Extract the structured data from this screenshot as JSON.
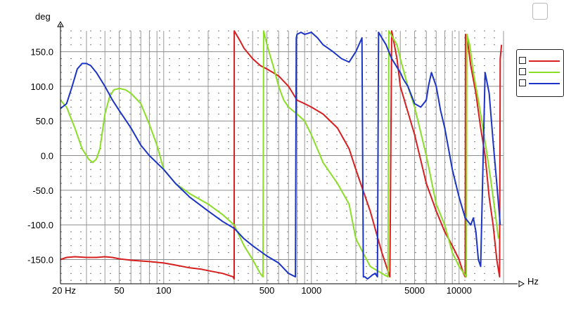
{
  "chart_data": {
    "type": "line",
    "xscale": "log",
    "xlabel": "Hz",
    "ylabel": "deg",
    "xlim": [
      20,
      20000
    ],
    "ylim": [
      -185,
      180
    ],
    "x_tick_labels": [
      "20 Hz",
      "50",
      "100",
      "500",
      "1000",
      "5000",
      "10000"
    ],
    "x_tick_values": [
      20,
      50,
      100,
      500,
      1000,
      5000,
      10000
    ],
    "y_tick_labels": [
      "150.0",
      "100.0",
      "50.0",
      "0.0",
      "-50.0",
      "-100.0",
      "-150.0"
    ],
    "y_tick_values": [
      150,
      100,
      50,
      0,
      -50,
      -100,
      -150
    ],
    "grid": true,
    "legend_position": "right",
    "series": [
      {
        "color": "#d81e1e",
        "points": [
          [
            20,
            -150
          ],
          [
            22,
            -147
          ],
          [
            25,
            -146
          ],
          [
            30,
            -147
          ],
          [
            35,
            -147
          ],
          [
            40,
            -146
          ],
          [
            45,
            -147
          ],
          [
            50,
            -149
          ],
          [
            55,
            -150
          ],
          [
            60,
            -151
          ],
          [
            70,
            -152
          ],
          [
            80,
            -153
          ],
          [
            100,
            -155
          ],
          [
            120,
            -158
          ],
          [
            150,
            -162
          ],
          [
            180,
            -164
          ],
          [
            200,
            -166
          ],
          [
            250,
            -170
          ],
          [
            295,
            -175
          ],
          [
            300,
            -178
          ],
          [
            300.5,
            180
          ],
          [
            330,
            165
          ],
          [
            350,
            155
          ],
          [
            400,
            140
          ],
          [
            450,
            130
          ],
          [
            500,
            125
          ],
          [
            600,
            115
          ],
          [
            700,
            100
          ],
          [
            800,
            80
          ],
          [
            900,
            75
          ],
          [
            1000,
            70
          ],
          [
            1200,
            60
          ],
          [
            1500,
            40
          ],
          [
            1800,
            10
          ],
          [
            2000,
            -20
          ],
          [
            2500,
            -80
          ],
          [
            3000,
            -140
          ],
          [
            3400,
            -175
          ],
          [
            3500,
            180
          ],
          [
            3800,
            140
          ],
          [
            4000,
            100
          ],
          [
            5000,
            30
          ],
          [
            6000,
            -40
          ],
          [
            7000,
            -80
          ],
          [
            8000,
            -110
          ],
          [
            9000,
            -130
          ],
          [
            10000,
            -150
          ],
          [
            10700,
            -170
          ],
          [
            11000,
            -175
          ],
          [
            11050,
            175
          ],
          [
            11500,
            160
          ],
          [
            12000,
            130
          ],
          [
            13000,
            90
          ],
          [
            14000,
            40
          ],
          [
            15000,
            0
          ],
          [
            16000,
            -60
          ],
          [
            17000,
            -100
          ],
          [
            18000,
            -150
          ],
          [
            18800,
            -175
          ],
          [
            19000,
            140
          ],
          [
            19400,
            160
          ]
        ]
      },
      {
        "color": "#8ade26",
        "points": [
          [
            20,
            80
          ],
          [
            22,
            70
          ],
          [
            25,
            40
          ],
          [
            28,
            10
          ],
          [
            31,
            -5
          ],
          [
            33,
            -10
          ],
          [
            35,
            -5
          ],
          [
            37,
            10
          ],
          [
            40,
            60
          ],
          [
            43,
            85
          ],
          [
            46,
            95
          ],
          [
            50,
            97
          ],
          [
            55,
            95
          ],
          [
            60,
            90
          ],
          [
            70,
            75
          ],
          [
            80,
            45
          ],
          [
            90,
            15
          ],
          [
            100,
            -20
          ],
          [
            120,
            -40
          ],
          [
            150,
            -55
          ],
          [
            200,
            -70
          ],
          [
            250,
            -85
          ],
          [
            300,
            -100
          ],
          [
            350,
            -130
          ],
          [
            400,
            -150
          ],
          [
            450,
            -170
          ],
          [
            470,
            -175
          ],
          [
            475,
            180
          ],
          [
            500,
            160
          ],
          [
            550,
            130
          ],
          [
            600,
            100
          ],
          [
            650,
            80
          ],
          [
            700,
            70
          ],
          [
            800,
            60
          ],
          [
            900,
            50
          ],
          [
            1000,
            30
          ],
          [
            1200,
            -10
          ],
          [
            1500,
            -40
          ],
          [
            1800,
            -70
          ],
          [
            2000,
            -120
          ],
          [
            2500,
            -160
          ],
          [
            3000,
            -170
          ],
          [
            3300,
            -175
          ],
          [
            3350,
            180
          ],
          [
            3800,
            160
          ],
          [
            4000,
            140
          ],
          [
            4500,
            100
          ],
          [
            5000,
            70
          ],
          [
            6000,
            0
          ],
          [
            7000,
            -70
          ],
          [
            8000,
            -100
          ],
          [
            9000,
            -140
          ],
          [
            10000,
            -160
          ],
          [
            11200,
            -175
          ],
          [
            11300,
            175
          ],
          [
            11800,
            160
          ],
          [
            12500,
            120
          ],
          [
            13500,
            80
          ],
          [
            14500,
            40
          ],
          [
            15500,
            0
          ],
          [
            16500,
            -40
          ],
          [
            17500,
            -80
          ],
          [
            18500,
            -120
          ]
        ]
      },
      {
        "color": "#1b34c7",
        "points": [
          [
            20,
            68
          ],
          [
            22,
            75
          ],
          [
            24,
            100
          ],
          [
            26,
            125
          ],
          [
            28,
            133
          ],
          [
            30,
            133
          ],
          [
            32,
            130
          ],
          [
            35,
            120
          ],
          [
            40,
            100
          ],
          [
            45,
            80
          ],
          [
            50,
            65
          ],
          [
            60,
            40
          ],
          [
            70,
            15
          ],
          [
            80,
            0
          ],
          [
            100,
            -20
          ],
          [
            120,
            -40
          ],
          [
            150,
            -60
          ],
          [
            200,
            -80
          ],
          [
            250,
            -95
          ],
          [
            300,
            -105
          ],
          [
            350,
            -120
          ],
          [
            400,
            -130
          ],
          [
            500,
            -145
          ],
          [
            600,
            -155
          ],
          [
            700,
            -170
          ],
          [
            780,
            -175
          ],
          [
            790,
            170
          ],
          [
            800,
            175
          ],
          [
            850,
            178
          ],
          [
            900,
            175
          ],
          [
            1000,
            178
          ],
          [
            1100,
            170
          ],
          [
            1200,
            160
          ],
          [
            1400,
            150
          ],
          [
            1600,
            140
          ],
          [
            1800,
            135
          ],
          [
            2000,
            150
          ],
          [
            2200,
            170
          ],
          [
            2250,
            -175
          ],
          [
            2300,
            -175
          ],
          [
            2400,
            -178
          ],
          [
            2500,
            -175
          ],
          [
            2600,
            -172
          ],
          [
            2700,
            -170
          ],
          [
            2800,
            -175
          ],
          [
            2850,
            178
          ],
          [
            3000,
            170
          ],
          [
            3200,
            160
          ],
          [
            3500,
            140
          ],
          [
            4000,
            120
          ],
          [
            4200,
            110
          ],
          [
            4500,
            100
          ],
          [
            5000,
            75
          ],
          [
            5500,
            70
          ],
          [
            6000,
            80
          ],
          [
            6200,
            100
          ],
          [
            6500,
            120
          ],
          [
            7000,
            100
          ],
          [
            7500,
            65
          ],
          [
            8000,
            40
          ],
          [
            9000,
            -20
          ],
          [
            10000,
            -60
          ],
          [
            11000,
            -90
          ],
          [
            12000,
            -100
          ],
          [
            12500,
            -90
          ],
          [
            13000,
            -110
          ],
          [
            13500,
            -150
          ],
          [
            14000,
            -160
          ],
          [
            15000,
            120
          ],
          [
            16000,
            90
          ],
          [
            17000,
            20
          ],
          [
            18000,
            -40
          ],
          [
            19000,
            -100
          ]
        ]
      }
    ]
  }
}
